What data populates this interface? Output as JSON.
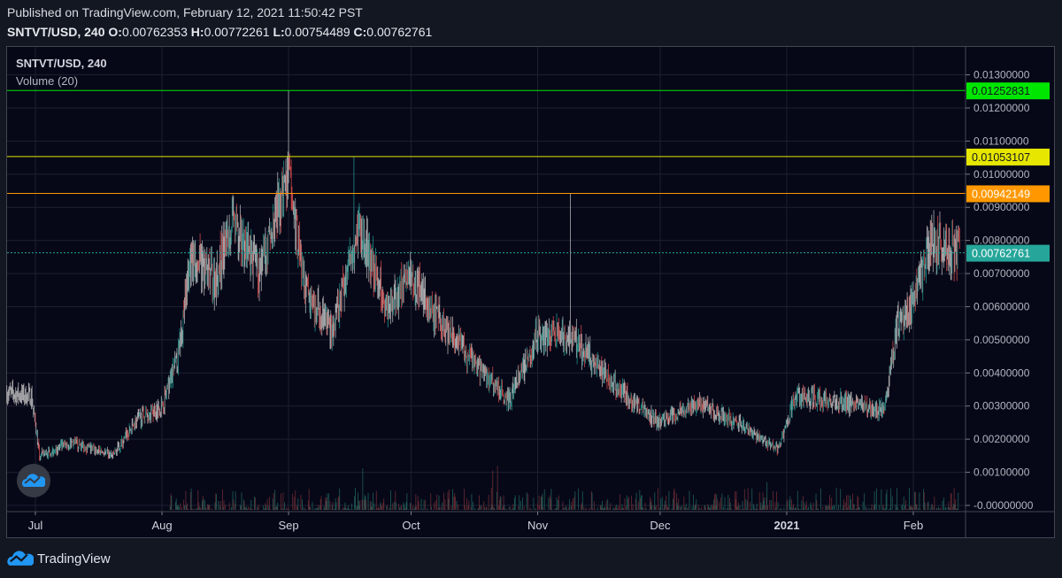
{
  "header": {
    "published": "Published on TradingView.com, February 12, 2021 11:50:42 PST",
    "symbol": "SNTVT/USD, 240",
    "o_label": "O:",
    "o": "0.00762353",
    "h_label": "H:",
    "h": "0.00772261",
    "l_label": "L:",
    "l": "0.00754489",
    "c_label": "C:",
    "c": "0.00762761"
  },
  "legend": {
    "symbol": "SNTVT/USD, 240",
    "indicator": "Volume (20)"
  },
  "brand": {
    "name": "TradingView",
    "icon": "tradingview-cloud-icon"
  },
  "colors": {
    "up": "#26a69a",
    "down": "#ef5350",
    "neutral": "#c8c8c8",
    "background": "#060818",
    "grid": "#1c2030",
    "green_line": "#00e600",
    "yellow_line": "#e6e600",
    "orange_line": "#ff9800",
    "last_price": "#26a69a"
  },
  "chart_data": {
    "type": "candlestick",
    "interval": "240",
    "price_axis": {
      "ylim": [
        -0.0002,
        0.0133
      ],
      "ticks": [
        "0.01300000",
        "0.01200000",
        "0.01100000",
        "0.01000000",
        "0.00900000",
        "0.00800000",
        "0.00700000",
        "0.00600000",
        "0.00500000",
        "0.00400000",
        "0.00300000",
        "0.00200000",
        "0.00100000",
        "-0.00000000"
      ],
      "tick_values": [
        0.013,
        0.012,
        0.011,
        0.01,
        0.009,
        0.008,
        0.007,
        0.006,
        0.005,
        0.004,
        0.003,
        0.002,
        0.001,
        0
      ]
    },
    "time_axis": {
      "xlim": [
        "2020-06-24",
        "2021-02-13"
      ],
      "labels": [
        {
          "text": "Jul",
          "date": "2020-07-01"
        },
        {
          "text": "Aug",
          "date": "2020-08-01"
        },
        {
          "text": "Sep",
          "date": "2020-09-01"
        },
        {
          "text": "Oct",
          "date": "2020-10-01"
        },
        {
          "text": "Nov",
          "date": "2020-11-01"
        },
        {
          "text": "Dec",
          "date": "2020-12-01"
        },
        {
          "text": "2021",
          "date": "2021-01-01"
        },
        {
          "text": "Feb",
          "date": "2021-02-01"
        }
      ]
    },
    "horizontal_lines": [
      {
        "value": 0.01252831,
        "label": "0.01252831",
        "color": "#00e600",
        "style": "solid"
      },
      {
        "value": 0.01053107,
        "label": "0.01053107",
        "color": "#e6e600",
        "style": "solid"
      },
      {
        "value": 0.00942149,
        "label": "0.00942149",
        "color": "#ff9800",
        "style": "solid"
      },
      {
        "value": 0.00762761,
        "label": "0.00762761",
        "color": "#26a69a",
        "style": "dotted"
      }
    ],
    "approx_close_path": [
      [
        "2020-06-24",
        0.0034
      ],
      [
        "2020-06-30",
        0.0033
      ],
      [
        "2020-07-02",
        0.0015
      ],
      [
        "2020-07-10",
        0.0019
      ],
      [
        "2020-07-20",
        0.0015
      ],
      [
        "2020-07-26",
        0.0026
      ],
      [
        "2020-08-01",
        0.003
      ],
      [
        "2020-08-05",
        0.0045
      ],
      [
        "2020-08-08",
        0.0075
      ],
      [
        "2020-08-14",
        0.0068
      ],
      [
        "2020-08-18",
        0.0085
      ],
      [
        "2020-08-25",
        0.007
      ],
      [
        "2020-09-01",
        0.01
      ],
      [
        "2020-09-05",
        0.0065
      ],
      [
        "2020-09-12",
        0.0053
      ],
      [
        "2020-09-18",
        0.0085
      ],
      [
        "2020-09-25",
        0.006
      ],
      [
        "2020-10-01",
        0.007
      ],
      [
        "2020-10-08",
        0.0055
      ],
      [
        "2020-10-15",
        0.0045
      ],
      [
        "2020-10-25",
        0.0032
      ],
      [
        "2020-11-01",
        0.0052
      ],
      [
        "2020-11-10",
        0.005
      ],
      [
        "2020-11-20",
        0.0036
      ],
      [
        "2020-12-01",
        0.0025
      ],
      [
        "2020-12-10",
        0.0031
      ],
      [
        "2020-12-20",
        0.0025
      ],
      [
        "2020-12-30",
        0.0017
      ],
      [
        "2021-01-03",
        0.0033
      ],
      [
        "2021-01-15",
        0.0031
      ],
      [
        "2021-01-25",
        0.0029
      ],
      [
        "2021-01-28",
        0.0055
      ],
      [
        "2021-02-01",
        0.006
      ],
      [
        "2021-02-05",
        0.008
      ],
      [
        "2021-02-12",
        0.00763
      ]
    ],
    "notable_highs": [
      [
        "2020-09-01",
        0.01252831
      ],
      [
        "2020-09-17",
        0.01053107
      ],
      [
        "2020-11-09",
        0.00942149
      ]
    ]
  }
}
